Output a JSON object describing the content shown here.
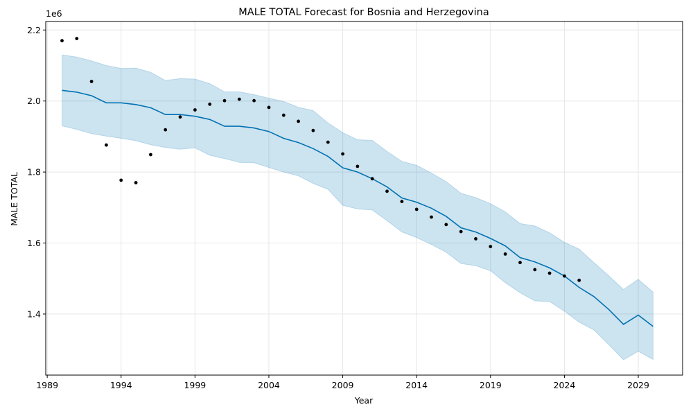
{
  "chart_data": {
    "type": "line",
    "title": "MALE TOTAL Forecast for Bosnia and Herzegovina",
    "xlabel": "Year",
    "ylabel": "MALE TOTAL",
    "y_offset_label": "1e6",
    "xlim": [
      1988.9,
      2032.0
    ],
    "ylim": [
      1228000,
      2224000
    ],
    "x_ticks": [
      1989,
      1994,
      1999,
      2004,
      2009,
      2014,
      2019,
      2024,
      2029
    ],
    "y_ticks": [
      1400000,
      1600000,
      1800000,
      2000000,
      2200000
    ],
    "y_tick_labels": [
      "1.4",
      "1.6",
      "1.8",
      "2.0",
      "2.2"
    ],
    "grid": true,
    "colors": {
      "forecast_line": "#0072b2",
      "interval_fill": "#0072b2",
      "observed_points": "#000000",
      "grid": "#e6e6e6"
    },
    "observed": {
      "x": [
        1990,
        1991,
        1992,
        1993,
        1994,
        1995,
        1996,
        1997,
        1998,
        1999,
        2000,
        2001,
        2002,
        2003,
        2004,
        2005,
        2006,
        2007,
        2008,
        2009,
        2010,
        2011,
        2012,
        2013,
        2014,
        2015,
        2016,
        2017,
        2018,
        2019,
        2020,
        2021,
        2022,
        2023,
        2024,
        2025
      ],
      "y": [
        2170000,
        2176000,
        2055000,
        1876000,
        1777000,
        1770000,
        1849000,
        1919000,
        1955000,
        1975000,
        1991000,
        2001000,
        2005000,
        2001000,
        1982000,
        1960000,
        1943000,
        1917000,
        1884000,
        1851000,
        1816000,
        1781000,
        1746000,
        1717000,
        1695000,
        1673000,
        1652000,
        1632000,
        1612000,
        1590000,
        1569000,
        1545000,
        1525000,
        1515000,
        1507000,
        1495000
      ]
    },
    "forecast": {
      "x": [
        1990,
        1991,
        1992,
        1993,
        1994,
        1995,
        1996,
        1997,
        1998,
        1999,
        2000,
        2001,
        2002,
        2003,
        2004,
        2005,
        2006,
        2007,
        2008,
        2009,
        2010,
        2011,
        2012,
        2013,
        2014,
        2015,
        2016,
        2017,
        2018,
        2019,
        2020,
        2021,
        2022,
        2023,
        2024,
        2025,
        2026,
        2027,
        2028,
        2029,
        2030
      ],
      "yhat": [
        2030000,
        2025000,
        2015000,
        1995000,
        1995000,
        1990000,
        1981000,
        1962000,
        1962000,
        1957000,
        1948000,
        1929000,
        1929000,
        1924000,
        1914000,
        1895000,
        1883000,
        1866000,
        1844000,
        1812000,
        1800000,
        1781000,
        1758000,
        1727000,
        1715000,
        1698000,
        1675000,
        1643000,
        1631000,
        1613000,
        1592000,
        1559000,
        1547000,
        1530000,
        1507000,
        1475000,
        1449000,
        1413000,
        1371000,
        1397000,
        1365000
      ],
      "yhat_lower": [
        1930000,
        1920000,
        1908000,
        1901000,
        1895000,
        1888000,
        1877000,
        1869000,
        1864000,
        1868000,
        1847000,
        1838000,
        1827000,
        1826000,
        1813000,
        1800000,
        1789000,
        1768000,
        1751000,
        1706000,
        1696000,
        1693000,
        1663000,
        1631000,
        1615000,
        1596000,
        1574000,
        1542000,
        1536000,
        1522000,
        1488000,
        1460000,
        1437000,
        1435000,
        1408000,
        1377000,
        1355000,
        1314000,
        1271000,
        1295000,
        1272000
      ],
      "yhat_upper": [
        2130000,
        2124000,
        2113000,
        2100000,
        2092000,
        2093000,
        2081000,
        2058000,
        2063000,
        2062000,
        2049000,
        2026000,
        2026000,
        2018000,
        2008000,
        1999000,
        1982000,
        1973000,
        1938000,
        1911000,
        1891000,
        1889000,
        1858000,
        1830000,
        1819000,
        1797000,
        1773000,
        1740000,
        1728000,
        1711000,
        1688000,
        1655000,
        1648000,
        1629000,
        1602000,
        1583000,
        1545000,
        1508000,
        1469000,
        1498000,
        1462000
      ]
    }
  }
}
